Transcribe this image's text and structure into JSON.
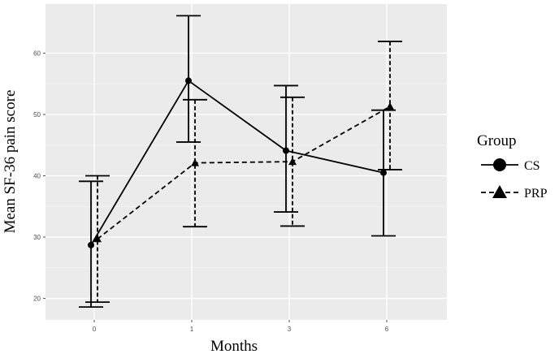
{
  "chart_data": {
    "type": "line",
    "xlabel": "Months",
    "ylabel": "Mean SF-36 pain score",
    "categories": [
      "0",
      "1",
      "3",
      "6"
    ],
    "yticks": [
      20,
      30,
      40,
      50,
      60
    ],
    "ylim": [
      16.5,
      68
    ],
    "grid": true,
    "legend": {
      "title": "Group",
      "position": "right"
    },
    "series": [
      {
        "name": "CS",
        "marker": "circle",
        "line": "solid",
        "values": [
          28.7,
          55.5,
          44.1,
          40.5
        ],
        "lower": [
          18.6,
          45.5,
          34.1,
          30.2
        ],
        "upper": [
          39.1,
          66.1,
          54.7,
          50.7
        ]
      },
      {
        "name": "PRP",
        "marker": "triangle",
        "line": "dashed",
        "values": [
          29.7,
          42.1,
          42.3,
          51.3
        ],
        "lower": [
          19.4,
          31.7,
          31.8,
          41.0
        ],
        "upper": [
          40.0,
          52.4,
          52.8,
          61.9
        ]
      }
    ]
  }
}
